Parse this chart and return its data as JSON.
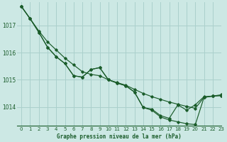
{
  "title": "Graphe pression niveau de la mer (hPa)",
  "background_color": "#cce8e4",
  "grid_color": "#aad0cc",
  "line_color": "#1a5c2a",
  "text_color": "#1a5c2a",
  "xlim": [
    -0.5,
    23
  ],
  "ylim": [
    1013.3,
    1017.85
  ],
  "yticks": [
    1014,
    1015,
    1016,
    1017
  ],
  "xticks": [
    0,
    1,
    2,
    3,
    4,
    5,
    6,
    7,
    8,
    9,
    10,
    11,
    12,
    13,
    14,
    15,
    16,
    17,
    18,
    19,
    20,
    21,
    22,
    23
  ],
  "series_smooth": [
    1017.7,
    1017.25,
    1016.8,
    1016.4,
    1016.1,
    1015.8,
    1015.55,
    1015.3,
    1015.2,
    1015.15,
    1015.0,
    1014.9,
    1014.8,
    1014.65,
    1014.5,
    1014.38,
    1014.28,
    1014.18,
    1014.1,
    1014.02,
    1013.95,
    1014.35,
    1014.4,
    1014.45
  ],
  "series_mid": [
    1017.7,
    1017.25,
    1016.75,
    1016.2,
    1015.85,
    1015.6,
    1015.15,
    1015.1,
    1015.38,
    1015.45,
    1015.0,
    1014.88,
    1014.78,
    1014.55,
    1013.98,
    1013.92,
    1013.68,
    1013.58,
    1014.08,
    1013.88,
    1014.08,
    1014.38,
    1014.4,
    1014.42
  ],
  "series_deep": [
    1017.7,
    1017.25,
    1016.75,
    1016.2,
    1015.85,
    1015.6,
    1015.15,
    1015.1,
    1015.38,
    1015.45,
    1015.0,
    1014.88,
    1014.78,
    1014.55,
    1013.98,
    1013.88,
    1013.63,
    1013.52,
    1013.45,
    1013.38,
    1013.35,
    1014.35,
    1014.4,
    1014.42
  ]
}
